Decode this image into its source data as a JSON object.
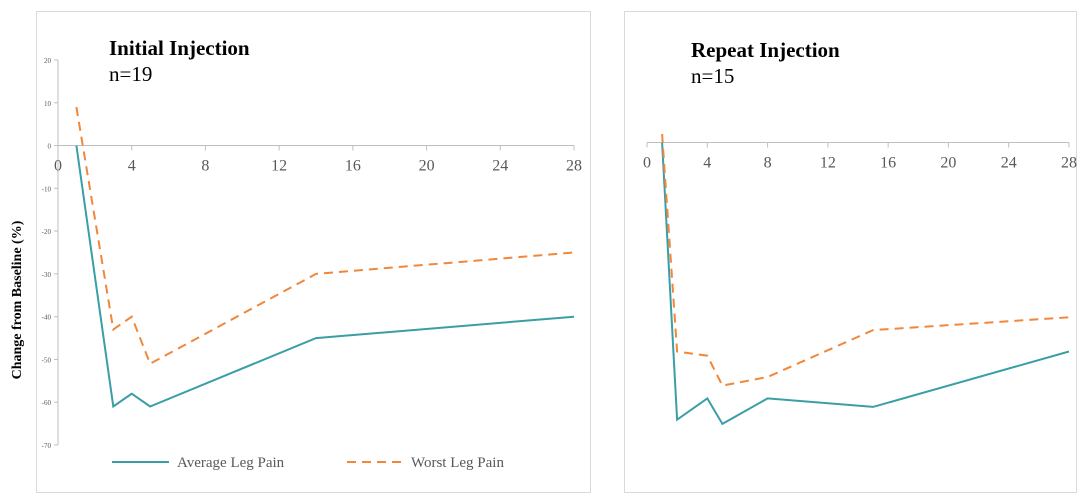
{
  "ylabel": "Change from Baseline (%)",
  "legend": [
    "Average Leg Pain",
    "Worst Leg Pain"
  ],
  "colors": {
    "average": "#3a9ea5",
    "worst": "#f0873a",
    "axis": "#bfbfbf",
    "tick_label": "#595959"
  },
  "chart_data": [
    {
      "type": "line",
      "title": "Initial Injection",
      "subtitle": "n=19",
      "xlabel": "",
      "ylabel": "Change from Baseline (%)",
      "xlim": [
        0,
        28
      ],
      "ylim": [
        -70,
        20
      ],
      "xticks": [
        0,
        4,
        8,
        12,
        16,
        20,
        24,
        28
      ],
      "yticks": [
        20,
        10,
        0,
        -10,
        -20,
        -30,
        -40,
        -50,
        -60,
        -70
      ],
      "grid": false,
      "legend_position": "bottom",
      "series": [
        {
          "name": "Average Leg Pain",
          "style": "solid",
          "x": [
            1,
            3,
            4,
            5,
            14,
            28
          ],
          "y": [
            0,
            -61,
            -58,
            -61,
            -45,
            -40
          ]
        },
        {
          "name": "Worst Leg Pain",
          "style": "dashed",
          "x": [
            1,
            3,
            4,
            5,
            14,
            28
          ],
          "y": [
            9,
            -43,
            -40,
            -51,
            -30,
            -25
          ]
        }
      ]
    },
    {
      "type": "line",
      "title": "Repeat Injection",
      "subtitle": "n=15",
      "xlabel": "",
      "ylabel": "",
      "xlim": [
        0,
        28
      ],
      "ylim": [
        -70,
        2
      ],
      "xticks": [
        0,
        4,
        8,
        12,
        16,
        20,
        24,
        28
      ],
      "yticks": [],
      "grid": false,
      "series": [
        {
          "name": "Average Leg Pain",
          "style": "solid",
          "x": [
            1,
            2,
            4,
            5,
            8,
            15,
            28
          ],
          "y": [
            0,
            -65,
            -60,
            -66,
            -60,
            -62,
            -49
          ]
        },
        {
          "name": "Worst Leg Pain",
          "style": "dashed",
          "x": [
            1,
            2,
            4,
            5,
            8,
            15,
            28
          ],
          "y": [
            2,
            -49,
            -50,
            -57,
            -55,
            -44,
            -41
          ]
        }
      ]
    }
  ]
}
